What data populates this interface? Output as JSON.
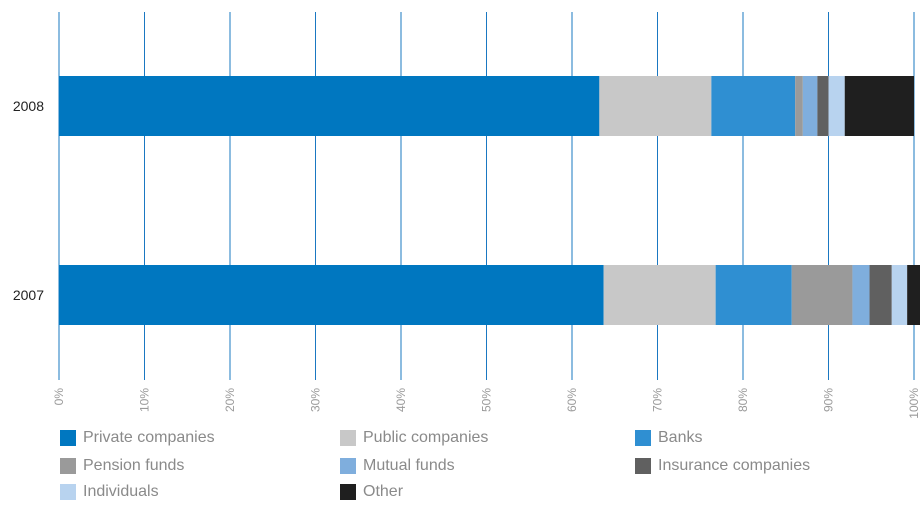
{
  "chart_data": {
    "type": "bar",
    "orientation": "horizontal",
    "stacked": true,
    "categories": [
      "2008",
      "2007"
    ],
    "series": [
      {
        "name": "Private companies",
        "color": "#0077c0",
        "values": [
          63.2,
          63.7
        ]
      },
      {
        "name": "Public companies",
        "color": "#c8c8c8",
        "values": [
          13.1,
          13.1
        ]
      },
      {
        "name": "Banks",
        "color": "#2f8fd2",
        "values": [
          9.8,
          8.9
        ]
      },
      {
        "name": "Pension funds",
        "color": "#9a9a9a",
        "values": [
          0.9,
          7.1
        ]
      },
      {
        "name": "Mutual funds",
        "color": "#7faedd",
        "values": [
          1.7,
          2.0
        ]
      },
      {
        "name": "Insurance companies",
        "color": "#606060",
        "values": [
          1.3,
          2.6
        ]
      },
      {
        "name": "Individuals",
        "color": "#b8d3ef",
        "values": [
          1.9,
          1.8
        ]
      },
      {
        "name": "Other",
        "color": "#1f1f1f",
        "values": [
          8.1,
          2.8
        ]
      }
    ],
    "x_ticks": [
      "0%",
      "10%",
      "20%",
      "30%",
      "40%",
      "50%",
      "60%",
      "70%",
      "80%",
      "90%",
      "100%"
    ],
    "xlim": [
      0,
      100
    ],
    "grid": true,
    "grid_color": "#1a78c2",
    "legend_position": "bottom"
  }
}
